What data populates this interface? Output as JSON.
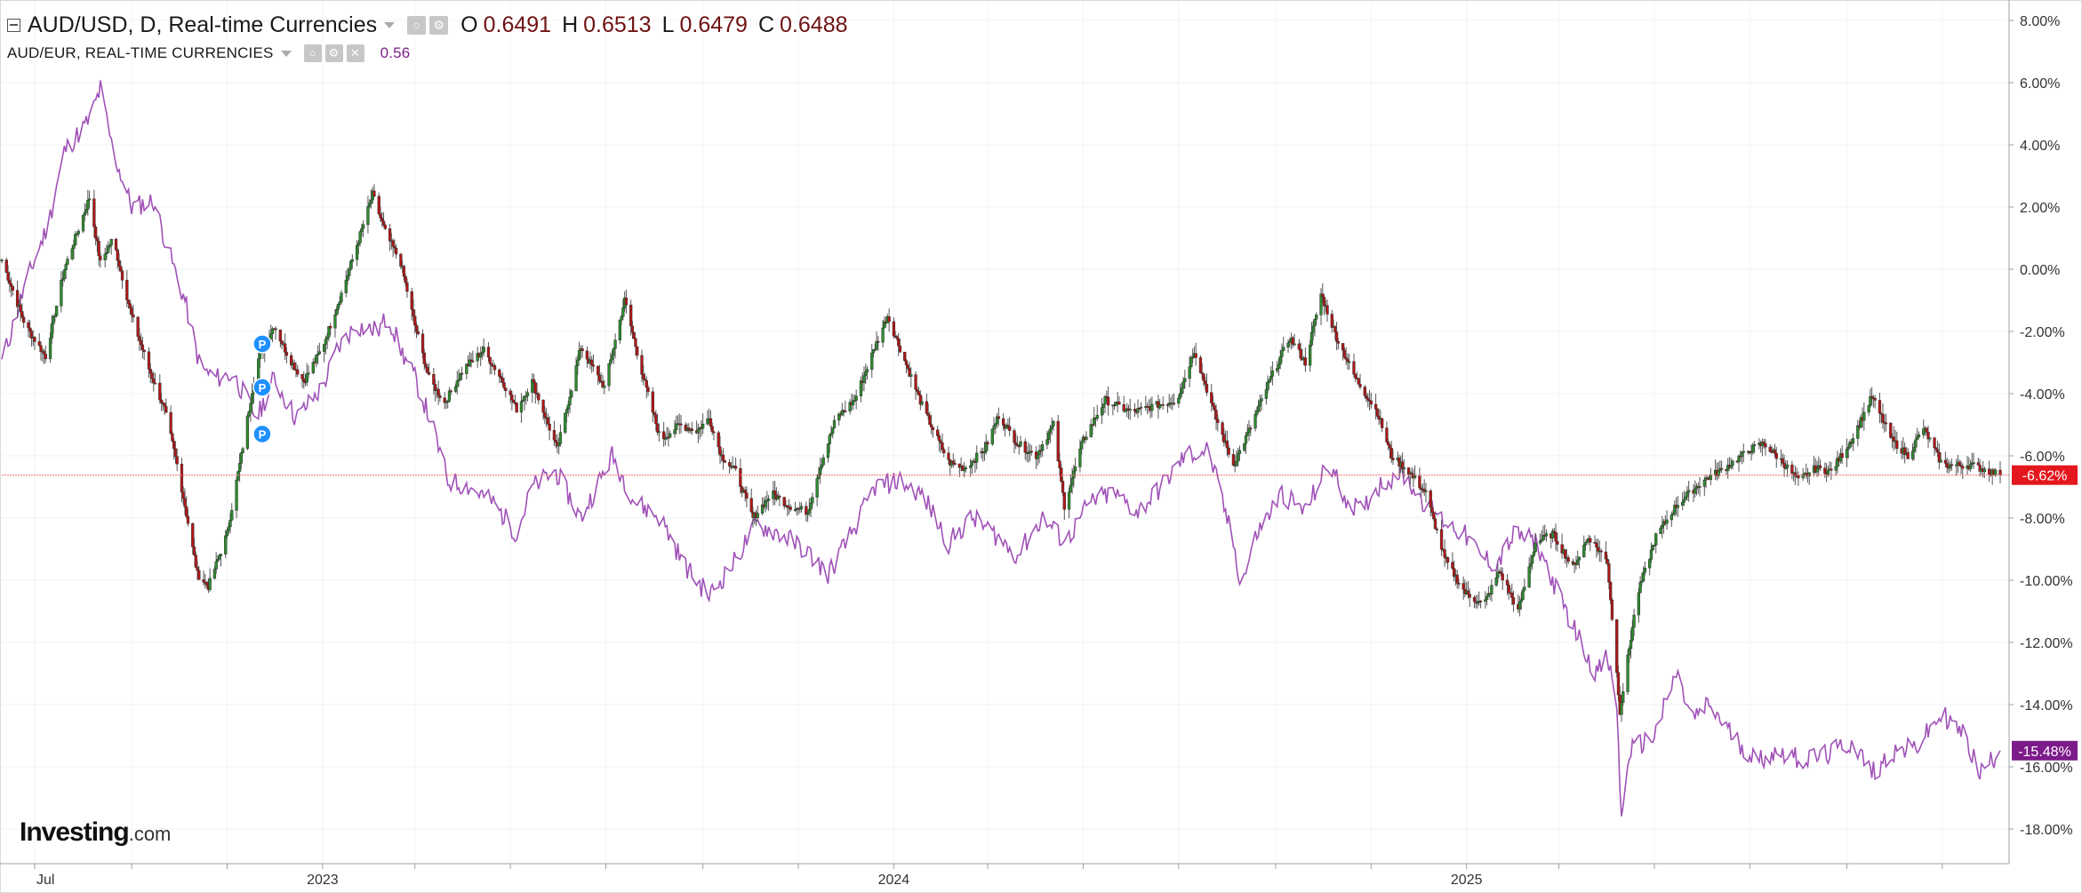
{
  "legend": {
    "main": {
      "title": "AUD/USD, D, Real-time Currencies",
      "o_label": "O",
      "o_value": "0.6491",
      "h_label": "H",
      "h_value": "0.6513",
      "l_label": "L",
      "l_value": "0.6479",
      "c_label": "C",
      "c_value": "0.6488"
    },
    "compare": {
      "title": "AUD/EUR, REAL-TIME CURRENCIES",
      "value": "0.56"
    },
    "icons": [
      "collapse-toggle-icon",
      "settings-icon",
      "close-icon",
      "dropdown-caret-icon"
    ]
  },
  "logo": {
    "brand": "Investing",
    "suffix": ".com"
  },
  "colors": {
    "up_candle": "#2d8a2d",
    "down_candle": "#b21616",
    "compare_line": "#a052b8",
    "price_line": "#f26b6b",
    "main_badge": "#e3171d",
    "compare_badge": "#7d1b8a",
    "marker": "#1e90ff"
  },
  "chart_data": {
    "type": "line",
    "subtype": "candlestick-percent-comparison",
    "title": "AUD/USD, D, Real-time Currencies",
    "ylabel": "",
    "xlabel": "",
    "y_unit": "%",
    "ylim": [
      -19.0,
      8.5
    ],
    "y_ticks": [
      "8.00%",
      "6.00%",
      "4.00%",
      "2.00%",
      "0.00%",
      "-2.00%",
      "-4.00%",
      "-6.00%",
      "-8.00%",
      "-10.00%",
      "-12.00%",
      "-14.00%",
      "-16.00%",
      "-18.00%"
    ],
    "y_tick_values": [
      8,
      6,
      4,
      2,
      0,
      -2,
      -4,
      -6,
      -8,
      -10,
      -12,
      -14,
      -16,
      -18
    ],
    "x_tick_labels": [
      "Jul",
      "2023",
      "2024",
      "2025"
    ],
    "x_tick_dates": [
      "2022-07-01",
      "2023-01-01",
      "2024-01-01",
      "2025-01-01"
    ],
    "x_minor_tick_dates": [
      "2022-07-01",
      "2022-09-01",
      "2022-11-01",
      "2023-03-01",
      "2023-05-01",
      "2023-07-01",
      "2023-09-01",
      "2023-11-01",
      "2024-03-01",
      "2024-05-01",
      "2024-07-01",
      "2024-09-01",
      "2024-11-01",
      "2025-03-01",
      "2025-05-01",
      "2025-07-01",
      "2025-09-01",
      "2025-11-01"
    ],
    "x_range": [
      "2022-06-10",
      "2025-12-08"
    ],
    "grid": true,
    "legend_position": "top-left",
    "last_value_labels": [
      {
        "series": "AUD/USD",
        "text": "-6.62%",
        "value": -6.62
      },
      {
        "series": "AUD/EUR",
        "text": "-15.48%",
        "value": -15.48
      }
    ],
    "current_price_line": -6.62,
    "markers": [
      {
        "label": "P",
        "date": "2022-11-20",
        "value": -2.4
      },
      {
        "label": "P",
        "date": "2022-11-20",
        "value": -3.8
      },
      {
        "label": "P",
        "date": "2022-11-20",
        "value": -5.3
      }
    ],
    "series": [
      {
        "name": "AUD/USD",
        "kind": "candlestick",
        "points": [
          [
            "2022-06-10",
            0.3
          ],
          [
            "2022-06-25",
            -1.8
          ],
          [
            "2022-07-08",
            -2.8
          ],
          [
            "2022-07-20",
            0.0
          ],
          [
            "2022-08-05",
            2.3
          ],
          [
            "2022-08-12",
            0.2
          ],
          [
            "2022-08-20",
            1.0
          ],
          [
            "2022-09-01",
            -1.5
          ],
          [
            "2022-09-12",
            -3.2
          ],
          [
            "2022-09-22",
            -4.5
          ],
          [
            "2022-10-01",
            -6.5
          ],
          [
            "2022-10-13",
            -9.8
          ],
          [
            "2022-10-20",
            -10.2
          ],
          [
            "2022-11-01",
            -8.5
          ],
          [
            "2022-11-10",
            -6.0
          ],
          [
            "2022-11-20",
            -3.0
          ],
          [
            "2022-12-01",
            -1.8
          ],
          [
            "2022-12-10",
            -2.8
          ],
          [
            "2022-12-20",
            -3.6
          ],
          [
            "2023-01-01",
            -2.5
          ],
          [
            "2023-01-15",
            -0.5
          ],
          [
            "2023-02-02",
            2.4
          ],
          [
            "2023-02-10",
            1.2
          ],
          [
            "2023-02-20",
            0.2
          ],
          [
            "2023-03-01",
            -1.8
          ],
          [
            "2023-03-10",
            -3.5
          ],
          [
            "2023-03-20",
            -4.3
          ],
          [
            "2023-04-01",
            -3.2
          ],
          [
            "2023-04-14",
            -2.6
          ],
          [
            "2023-04-25",
            -3.5
          ],
          [
            "2023-05-05",
            -4.5
          ],
          [
            "2023-05-15",
            -3.6
          ],
          [
            "2023-05-31",
            -5.8
          ],
          [
            "2023-06-15",
            -2.5
          ],
          [
            "2023-06-30",
            -3.8
          ],
          [
            "2023-07-13",
            -1.0
          ],
          [
            "2023-07-25",
            -3.5
          ],
          [
            "2023-08-05",
            -5.5
          ],
          [
            "2023-08-17",
            -5.0
          ],
          [
            "2023-08-28",
            -5.2
          ],
          [
            "2023-09-05",
            -4.8
          ],
          [
            "2023-09-13",
            -6.0
          ],
          [
            "2023-09-22",
            -6.5
          ],
          [
            "2023-10-03",
            -8.0
          ],
          [
            "2023-10-15",
            -7.2
          ],
          [
            "2023-10-26",
            -7.6
          ],
          [
            "2023-11-07",
            -7.8
          ],
          [
            "2023-11-14",
            -6.5
          ],
          [
            "2023-11-25",
            -4.8
          ],
          [
            "2023-12-07",
            -4.2
          ],
          [
            "2023-12-20",
            -2.5
          ],
          [
            "2023-12-28",
            -1.5
          ],
          [
            "2024-01-10",
            -3.2
          ],
          [
            "2024-01-20",
            -4.5
          ],
          [
            "2024-02-05",
            -6.2
          ],
          [
            "2024-02-15",
            -6.4
          ],
          [
            "2024-02-28",
            -5.8
          ],
          [
            "2024-03-08",
            -4.7
          ],
          [
            "2024-03-20",
            -5.6
          ],
          [
            "2024-04-01",
            -6.0
          ],
          [
            "2024-04-12",
            -5.0
          ],
          [
            "2024-04-19",
            -7.6
          ],
          [
            "2024-05-01",
            -5.5
          ],
          [
            "2024-05-15",
            -4.2
          ],
          [
            "2024-06-01",
            -4.6
          ],
          [
            "2024-06-15",
            -4.4
          ],
          [
            "2024-06-30",
            -4.2
          ],
          [
            "2024-07-11",
            -2.6
          ],
          [
            "2024-07-25",
            -4.8
          ],
          [
            "2024-08-05",
            -6.3
          ],
          [
            "2024-08-15",
            -5.2
          ],
          [
            "2024-08-28",
            -3.6
          ],
          [
            "2024-09-10",
            -2.2
          ],
          [
            "2024-09-20",
            -3.0
          ],
          [
            "2024-09-30",
            -0.8
          ],
          [
            "2024-10-10",
            -2.2
          ],
          [
            "2024-10-22",
            -3.5
          ],
          [
            "2024-11-05",
            -4.6
          ],
          [
            "2024-11-14",
            -6.0
          ],
          [
            "2024-11-25",
            -6.5
          ],
          [
            "2024-12-06",
            -7.2
          ],
          [
            "2024-12-18",
            -9.3
          ],
          [
            "2024-12-31",
            -10.4
          ],
          [
            "2025-01-12",
            -10.8
          ],
          [
            "2025-01-22",
            -9.7
          ],
          [
            "2025-02-03",
            -11.0
          ],
          [
            "2025-02-14",
            -8.8
          ],
          [
            "2025-02-25",
            -8.5
          ],
          [
            "2025-03-10",
            -9.6
          ],
          [
            "2025-03-20",
            -8.6
          ],
          [
            "2025-04-01",
            -9.4
          ],
          [
            "2025-04-09",
            -14.2
          ],
          [
            "2025-04-20",
            -10.5
          ],
          [
            "2025-05-02",
            -8.6
          ],
          [
            "2025-05-15",
            -7.6
          ],
          [
            "2025-06-01",
            -6.8
          ],
          [
            "2025-06-15",
            -6.4
          ],
          [
            "2025-07-01",
            -5.8
          ],
          [
            "2025-07-10",
            -5.6
          ],
          [
            "2025-07-22",
            -6.2
          ],
          [
            "2025-08-01",
            -6.8
          ],
          [
            "2025-08-12",
            -6.4
          ],
          [
            "2025-08-22",
            -6.5
          ],
          [
            "2025-09-05",
            -5.4
          ],
          [
            "2025-09-17",
            -4.1
          ],
          [
            "2025-09-30",
            -5.5
          ],
          [
            "2025-10-10",
            -6.0
          ],
          [
            "2025-10-20",
            -5.1
          ],
          [
            "2025-11-01",
            -6.3
          ],
          [
            "2025-11-20",
            -6.3
          ],
          [
            "2025-12-08",
            -6.62
          ]
        ]
      },
      {
        "name": "AUD/EUR",
        "kind": "line",
        "points": [
          [
            "2022-06-10",
            -3.0
          ],
          [
            "2022-06-25",
            -0.5
          ],
          [
            "2022-07-10",
            1.5
          ],
          [
            "2022-07-20",
            3.8
          ],
          [
            "2022-08-05",
            4.8
          ],
          [
            "2022-08-12",
            5.8
          ],
          [
            "2022-08-20",
            3.8
          ],
          [
            "2022-09-01",
            2.0
          ],
          [
            "2022-09-15",
            2.2
          ],
          [
            "2022-09-25",
            0.5
          ],
          [
            "2022-10-05",
            -1.0
          ],
          [
            "2022-10-15",
            -3.2
          ],
          [
            "2022-10-25",
            -3.5
          ],
          [
            "2022-11-05",
            -3.4
          ],
          [
            "2022-11-20",
            -4.8
          ],
          [
            "2022-12-01",
            -3.5
          ],
          [
            "2022-12-15",
            -4.8
          ],
          [
            "2023-01-01",
            -3.8
          ],
          [
            "2023-01-10",
            -2.6
          ],
          [
            "2023-01-22",
            -1.8
          ],
          [
            "2023-02-05",
            -2.0
          ],
          [
            "2023-02-12",
            -1.5
          ],
          [
            "2023-02-20",
            -2.6
          ],
          [
            "2023-03-01",
            -3.5
          ],
          [
            "2023-03-12",
            -5.0
          ],
          [
            "2023-03-22",
            -6.8
          ],
          [
            "2023-04-05",
            -7.0
          ],
          [
            "2023-04-20",
            -7.5
          ],
          [
            "2023-05-05",
            -8.5
          ],
          [
            "2023-05-15",
            -7.0
          ],
          [
            "2023-05-30",
            -6.5
          ],
          [
            "2023-06-15",
            -8.0
          ],
          [
            "2023-07-05",
            -6.0
          ],
          [
            "2023-07-20",
            -7.5
          ],
          [
            "2023-08-05",
            -8.0
          ],
          [
            "2023-08-20",
            -9.5
          ],
          [
            "2023-09-05",
            -10.5
          ],
          [
            "2023-09-20",
            -9.5
          ],
          [
            "2023-10-05",
            -8.2
          ],
          [
            "2023-10-20",
            -8.5
          ],
          [
            "2023-11-05",
            -9.0
          ],
          [
            "2023-11-20",
            -9.8
          ],
          [
            "2023-12-05",
            -8.5
          ],
          [
            "2023-12-20",
            -7.0
          ],
          [
            "2024-01-05",
            -6.8
          ],
          [
            "2024-01-20",
            -7.3
          ],
          [
            "2024-02-05",
            -8.8
          ],
          [
            "2024-02-20",
            -8.0
          ],
          [
            "2024-03-05",
            -8.5
          ],
          [
            "2024-03-20",
            -9.2
          ],
          [
            "2024-04-05",
            -8.0
          ],
          [
            "2024-04-20",
            -8.8
          ],
          [
            "2024-05-05",
            -7.5
          ],
          [
            "2024-05-20",
            -7.2
          ],
          [
            "2024-06-05",
            -7.8
          ],
          [
            "2024-06-20",
            -7.0
          ],
          [
            "2024-07-05",
            -6.0
          ],
          [
            "2024-07-20",
            -5.8
          ],
          [
            "2024-08-05",
            -8.8
          ],
          [
            "2024-08-10",
            -10.2
          ],
          [
            "2024-08-20",
            -8.5
          ],
          [
            "2024-09-05",
            -7.2
          ],
          [
            "2024-09-20",
            -7.8
          ],
          [
            "2024-10-05",
            -6.2
          ],
          [
            "2024-10-15",
            -7.3
          ],
          [
            "2024-10-25",
            -7.8
          ],
          [
            "2024-11-05",
            -7.0
          ],
          [
            "2024-11-20",
            -6.5
          ],
          [
            "2024-12-05",
            -7.5
          ],
          [
            "2024-12-15",
            -8.0
          ],
          [
            "2024-12-30",
            -8.5
          ],
          [
            "2025-01-10",
            -9.2
          ],
          [
            "2025-01-20",
            -9.5
          ],
          [
            "2025-02-01",
            -8.5
          ],
          [
            "2025-02-15",
            -8.8
          ],
          [
            "2025-03-01",
            -10.5
          ],
          [
            "2025-03-15",
            -12.0
          ],
          [
            "2025-03-25",
            -13.0
          ],
          [
            "2025-04-01",
            -12.5
          ],
          [
            "2025-04-07",
            -14.0
          ],
          [
            "2025-04-10",
            -17.8
          ],
          [
            "2025-04-15",
            -15.5
          ],
          [
            "2025-05-01",
            -15.0
          ],
          [
            "2025-05-15",
            -13.0
          ],
          [
            "2025-05-25",
            -14.5
          ],
          [
            "2025-06-05",
            -14.0
          ],
          [
            "2025-06-20",
            -15.0
          ],
          [
            "2025-07-05",
            -15.8
          ],
          [
            "2025-07-20",
            -15.5
          ],
          [
            "2025-08-05",
            -15.8
          ],
          [
            "2025-08-20",
            -15.6
          ],
          [
            "2025-09-05",
            -15.2
          ],
          [
            "2025-09-17",
            -16.2
          ],
          [
            "2025-10-01",
            -15.5
          ],
          [
            "2025-10-15",
            -15.4
          ],
          [
            "2025-11-01",
            -14.3
          ],
          [
            "2025-11-15",
            -15.0
          ],
          [
            "2025-11-25",
            -16.2
          ],
          [
            "2025-12-08",
            -15.48
          ]
        ]
      }
    ]
  }
}
